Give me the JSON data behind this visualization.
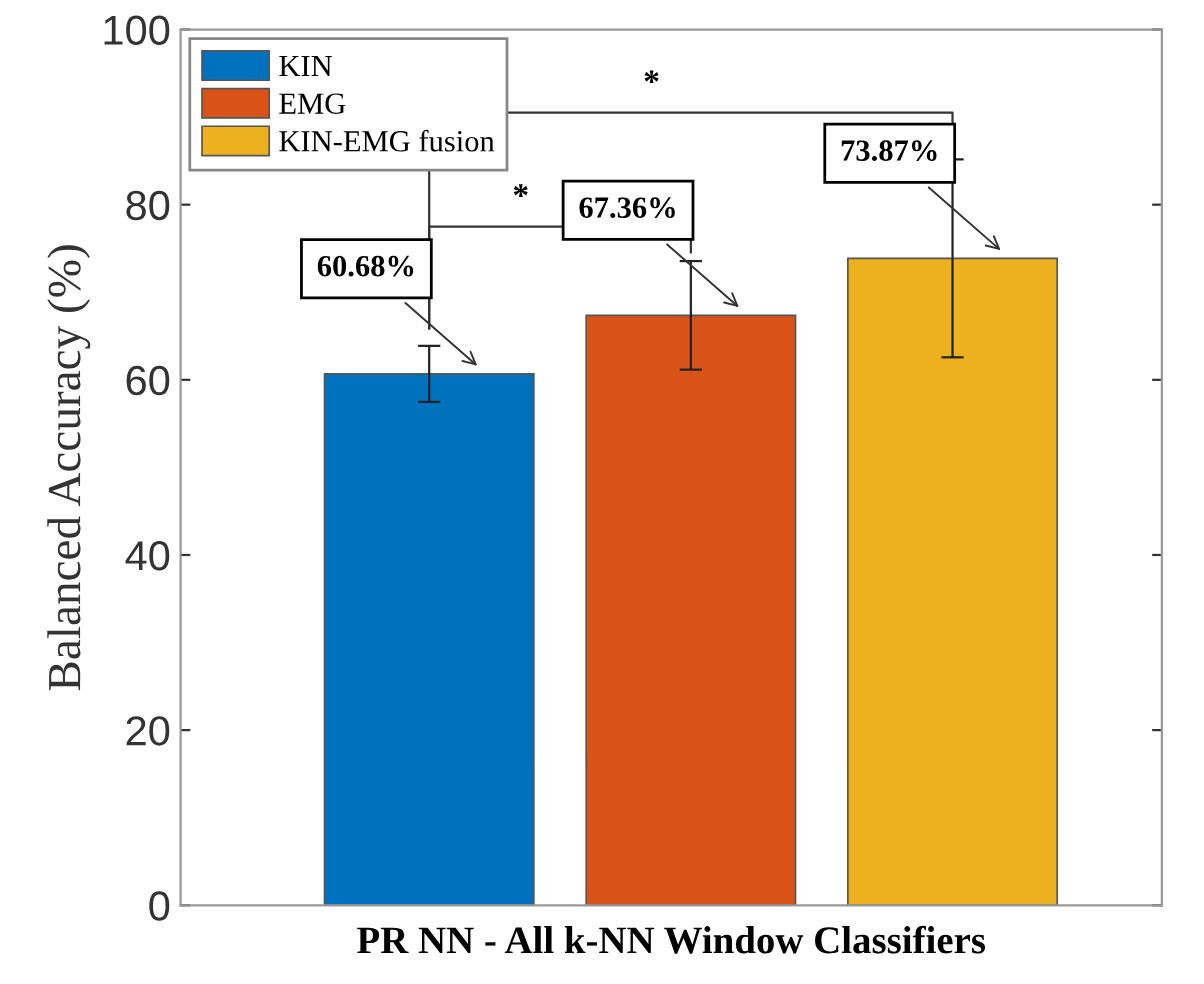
{
  "chart_data": {
    "type": "bar",
    "xlabel": "PR NN - All k-NN Window Classifiers",
    "ylabel": "Balanced Accuracy (%)",
    "categories": [
      null
    ],
    "series": [
      {
        "name": "KIN",
        "color": "#0072bd",
        "values": [
          60.68
        ],
        "errors": [
          3.2
        ],
        "value_labels": [
          "60.68%"
        ]
      },
      {
        "name": "EMG",
        "color": "#d95319",
        "values": [
          67.36
        ],
        "errors": [
          6.2
        ],
        "value_labels": [
          "67.36%"
        ]
      },
      {
        "name": "KIN-EMG fusion",
        "color": "#edb120",
        "values": [
          73.87
        ],
        "errors": [
          11.3
        ],
        "value_labels": [
          "73.87%"
        ]
      }
    ],
    "ylim": [
      0,
      100
    ],
    "yticks": [
      0,
      20,
      40,
      60,
      80,
      100
    ],
    "legend": "top left",
    "grid": false,
    "annotations": [
      "*",
      "*"
    ]
  }
}
